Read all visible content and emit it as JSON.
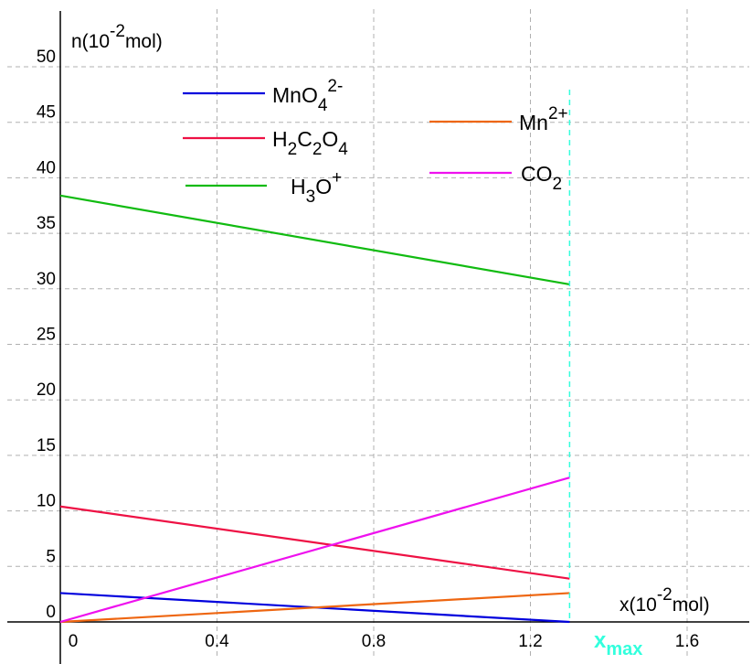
{
  "chart_data": {
    "type": "line",
    "xlabel": {
      "prefix": "x(10",
      "exp": "-2",
      "suffix": "mol)"
    },
    "ylabel": {
      "prefix": "n(10",
      "exp": "-2",
      "suffix": "mol)"
    },
    "xlim": [
      0,
      1.6
    ],
    "ylim": [
      0,
      50
    ],
    "x_ticks": [
      "0",
      "0.4",
      "0.8",
      "1.2",
      "1.6"
    ],
    "y_ticks": [
      "0",
      "5",
      "10",
      "15",
      "20",
      "25",
      "30",
      "35",
      "40",
      "45",
      "50"
    ],
    "grid": true,
    "xmax": {
      "value": 1.3,
      "label_main": "x",
      "label_sub": "max",
      "color": "#33ffdd"
    },
    "series": [
      {
        "key": "mno4",
        "color": "#0000dd",
        "x": [
          0,
          1.3
        ],
        "y": [
          2.6,
          0
        ],
        "label": [
          {
            "t": "MnO"
          },
          {
            "t": "4",
            "sub": true
          },
          {
            "t": "2-",
            "sup": true
          }
        ]
      },
      {
        "key": "h2c2o4",
        "color": "#ee1144",
        "x": [
          0,
          1.3
        ],
        "y": [
          10.4,
          3.9
        ],
        "label": [
          {
            "t": "H"
          },
          {
            "t": "2",
            "sub": true
          },
          {
            "t": "C"
          },
          {
            "t": "2",
            "sub": true
          },
          {
            "t": "O"
          },
          {
            "t": "4",
            "sub": true
          }
        ]
      },
      {
        "key": "h3o",
        "color": "#11bb11",
        "x": [
          0,
          1.3
        ],
        "y": [
          38.4,
          30.4
        ],
        "label": [
          {
            "t": "H"
          },
          {
            "t": "3",
            "sub": true
          },
          {
            "t": "O"
          },
          {
            "t": "+",
            "sup": true
          }
        ]
      },
      {
        "key": "mn2",
        "color": "#ee6611",
        "x": [
          0,
          1.3
        ],
        "y": [
          0,
          2.6
        ],
        "label": [
          {
            "t": "Mn"
          },
          {
            "t": "2+",
            "sup": true
          }
        ]
      },
      {
        "key": "co2",
        "color": "#ee11ee",
        "x": [
          0,
          1.3
        ],
        "y": [
          0,
          13.0
        ],
        "label": [
          {
            "t": "CO"
          },
          {
            "t": "2",
            "sub": true
          }
        ]
      }
    ]
  }
}
